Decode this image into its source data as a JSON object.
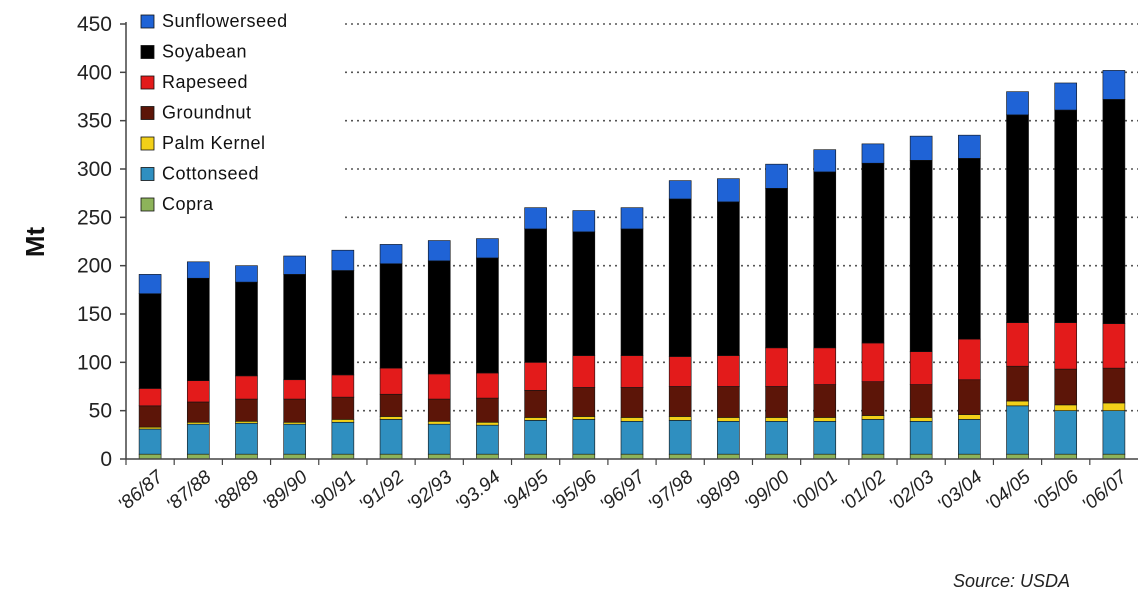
{
  "chart_data": {
    "type": "bar",
    "stacked": true,
    "xlabel": "",
    "ylabel": "Mt",
    "ylim": [
      0,
      450
    ],
    "yticks": [
      0,
      50,
      100,
      150,
      200,
      250,
      300,
      350,
      400,
      450
    ],
    "grid": "horizontal dotted",
    "legend_position": "top-left",
    "source": "Source: USDA",
    "categories": [
      "'86/87",
      "'87/88",
      "'88/89",
      "'89/90",
      "'90/91",
      "'91/92",
      "'92/93",
      "'93.94",
      "'94/95",
      "'95/96",
      "'96/97",
      "'97/98",
      "'98/99",
      "'99/00",
      "'00/01",
      "'01/02",
      "'02/03",
      "'03/04",
      "'04/05",
      "'05/06",
      "'06/07"
    ],
    "series": [
      {
        "name": "Copra",
        "color": "#8db35a",
        "values": [
          5,
          5,
          5,
          5,
          5,
          5,
          5,
          5,
          5,
          5,
          5,
          5,
          5,
          5,
          5,
          5,
          5,
          5,
          5,
          5,
          5
        ]
      },
      {
        "name": "Cottonseed",
        "color": "#2f8fc0",
        "values": [
          26,
          31,
          32,
          31,
          33,
          36,
          31,
          30,
          35,
          36,
          34,
          35,
          34,
          34,
          34,
          36,
          34,
          36,
          50,
          45,
          45
        ]
      },
      {
        "name": "Palm Kernel",
        "color": "#f2d019",
        "values": [
          2,
          2,
          2,
          2,
          3,
          3,
          3,
          3,
          3,
          3,
          4,
          4,
          4,
          4,
          4,
          4,
          4,
          5,
          5,
          6,
          8
        ]
      },
      {
        "name": "Groundnut",
        "color": "#5c1508",
        "values": [
          22,
          21,
          23,
          24,
          23,
          23,
          23,
          25,
          28,
          30,
          31,
          31,
          32,
          32,
          34,
          35,
          34,
          36,
          36,
          37,
          36
        ]
      },
      {
        "name": "Rapeseed",
        "color": "#e31b1b",
        "values": [
          18,
          22,
          24,
          20,
          23,
          27,
          26,
          26,
          29,
          33,
          33,
          31,
          32,
          40,
          38,
          40,
          34,
          42,
          45,
          48,
          46
        ]
      },
      {
        "name": "Soyabean",
        "color": "#000000",
        "values": [
          98,
          106,
          97,
          109,
          108,
          108,
          117,
          119,
          138,
          128,
          131,
          163,
          159,
          165,
          182,
          186,
          198,
          187,
          215,
          220,
          232
        ]
      },
      {
        "name": "Sunflowerseed",
        "color": "#1f63d6",
        "values": [
          20,
          17,
          17,
          19,
          21,
          20,
          21,
          20,
          22,
          22,
          22,
          19,
          24,
          25,
          23,
          20,
          25,
          24,
          24,
          28,
          30
        ]
      }
    ],
    "totals": [
      191,
      204,
      200,
      210,
      216,
      222,
      226,
      228,
      260,
      257,
      260,
      288,
      290,
      305,
      320,
      326,
      334,
      335,
      380,
      389,
      402
    ]
  }
}
